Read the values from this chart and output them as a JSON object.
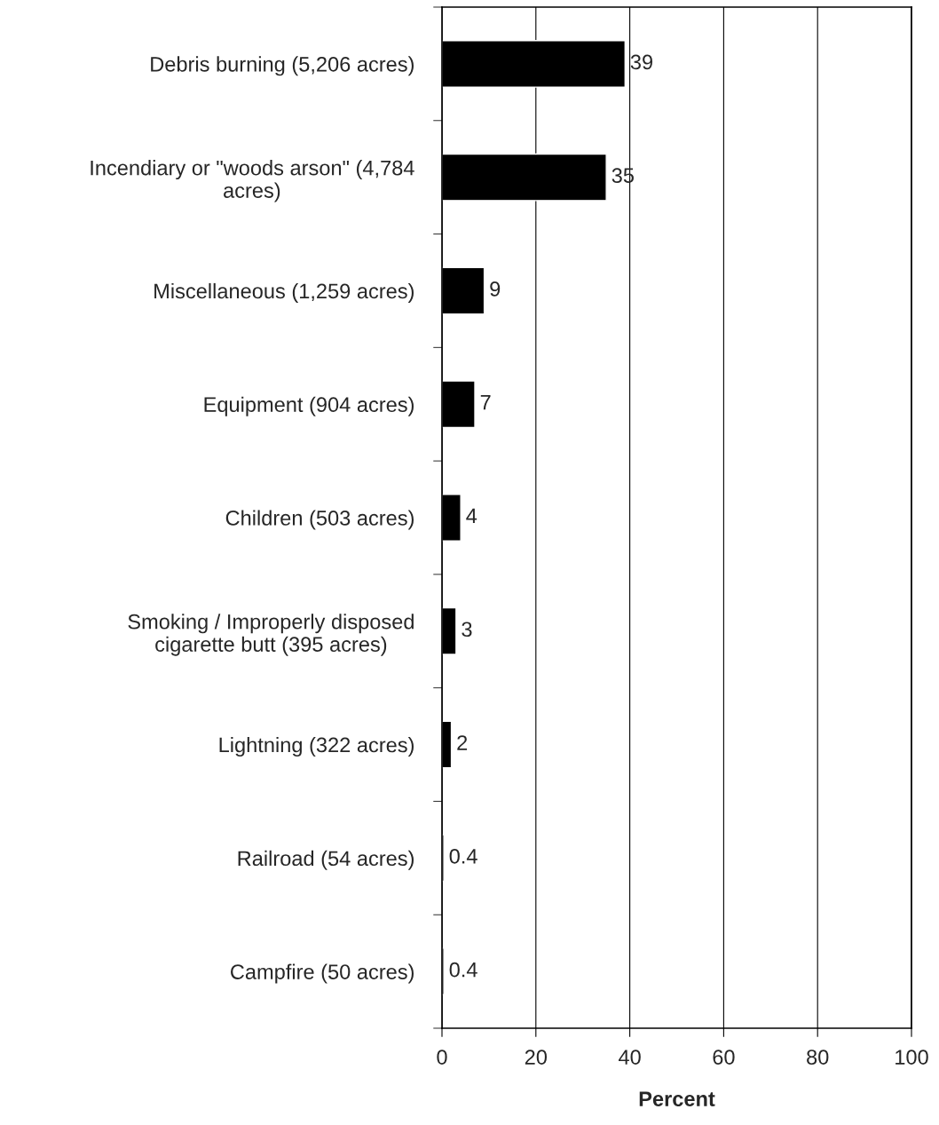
{
  "chart_data": {
    "type": "bar",
    "orientation": "horizontal",
    "xlabel": "Percent",
    "categories": [
      "Debris burning (5,206 acres)",
      "Incendiary or \"woods arson\" (4,784\nacres)",
      "Miscellaneous (1,259 acres)",
      "Equipment (904 acres)",
      "Children (503 acres)",
      "Smoking / Improperly disposed\ncigarette butt (395 acres)",
      "Lightning (322 acres)",
      "Railroad (54 acres)",
      "Campfire (50 acres)"
    ],
    "values": [
      39,
      35,
      9,
      7,
      4,
      3,
      2,
      0.4,
      0.4
    ],
    "color": "#000000",
    "data_labels": true,
    "xlim": [
      0,
      100
    ],
    "xticks": [
      0,
      20,
      40,
      60,
      80,
      100
    ],
    "grid": "x",
    "legend": false
  }
}
